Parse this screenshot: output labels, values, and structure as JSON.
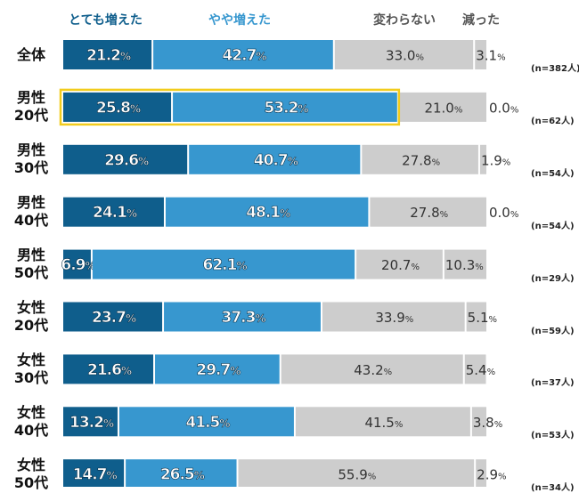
{
  "chart_data": {
    "type": "bar",
    "orientation": "horizontal",
    "stacked": true,
    "unit": "%",
    "categories": [
      [
        "全体"
      ],
      [
        "男性",
        "20代"
      ],
      [
        "男性",
        "30代"
      ],
      [
        "男性",
        "40代"
      ],
      [
        "男性",
        "50代"
      ],
      [
        "女性",
        "20代"
      ],
      [
        "女性",
        "30代"
      ],
      [
        "女性",
        "40代"
      ],
      [
        "女性",
        "50代"
      ]
    ],
    "sample_sizes": [
      "(n=382人)",
      "(n=62人)",
      "(n=54人)",
      "(n=54人)",
      "(n=29人)",
      "(n=59人)",
      "(n=37人)",
      "(n=53人)",
      "(n=34人)"
    ],
    "highlighted_category_index": 1,
    "series": [
      {
        "name": "とても増えた",
        "color": "#0f5e8c",
        "label_color": "#ffffff",
        "values": [
          21.2,
          25.8,
          29.6,
          24.1,
          6.9,
          23.7,
          21.6,
          13.2,
          14.7
        ]
      },
      {
        "name": "やや増えた",
        "color": "#3797cf",
        "label_color": "#ffffff",
        "values": [
          42.7,
          53.2,
          40.7,
          48.1,
          62.1,
          37.3,
          29.7,
          41.5,
          26.5
        ]
      },
      {
        "name": "変わらない",
        "color": "#cdcdcd",
        "label_color": "#333333",
        "values": [
          33.0,
          21.0,
          27.8,
          27.8,
          20.7,
          33.9,
          43.2,
          41.5,
          55.9
        ]
      },
      {
        "name": "減った",
        "color": "#cdcdcd",
        "label_color": "#333333",
        "values": [
          3.1,
          0.0,
          1.9,
          0.0,
          10.3,
          5.1,
          5.4,
          3.8,
          2.9
        ]
      }
    ],
    "legend_colors": [
      "#0f5e8c",
      "#3797cf",
      "#555555",
      "#555555"
    ],
    "highlight_color": "#f2cc1d",
    "xlim": [
      0,
      100
    ],
    "grid": false,
    "legend_position": "top"
  }
}
